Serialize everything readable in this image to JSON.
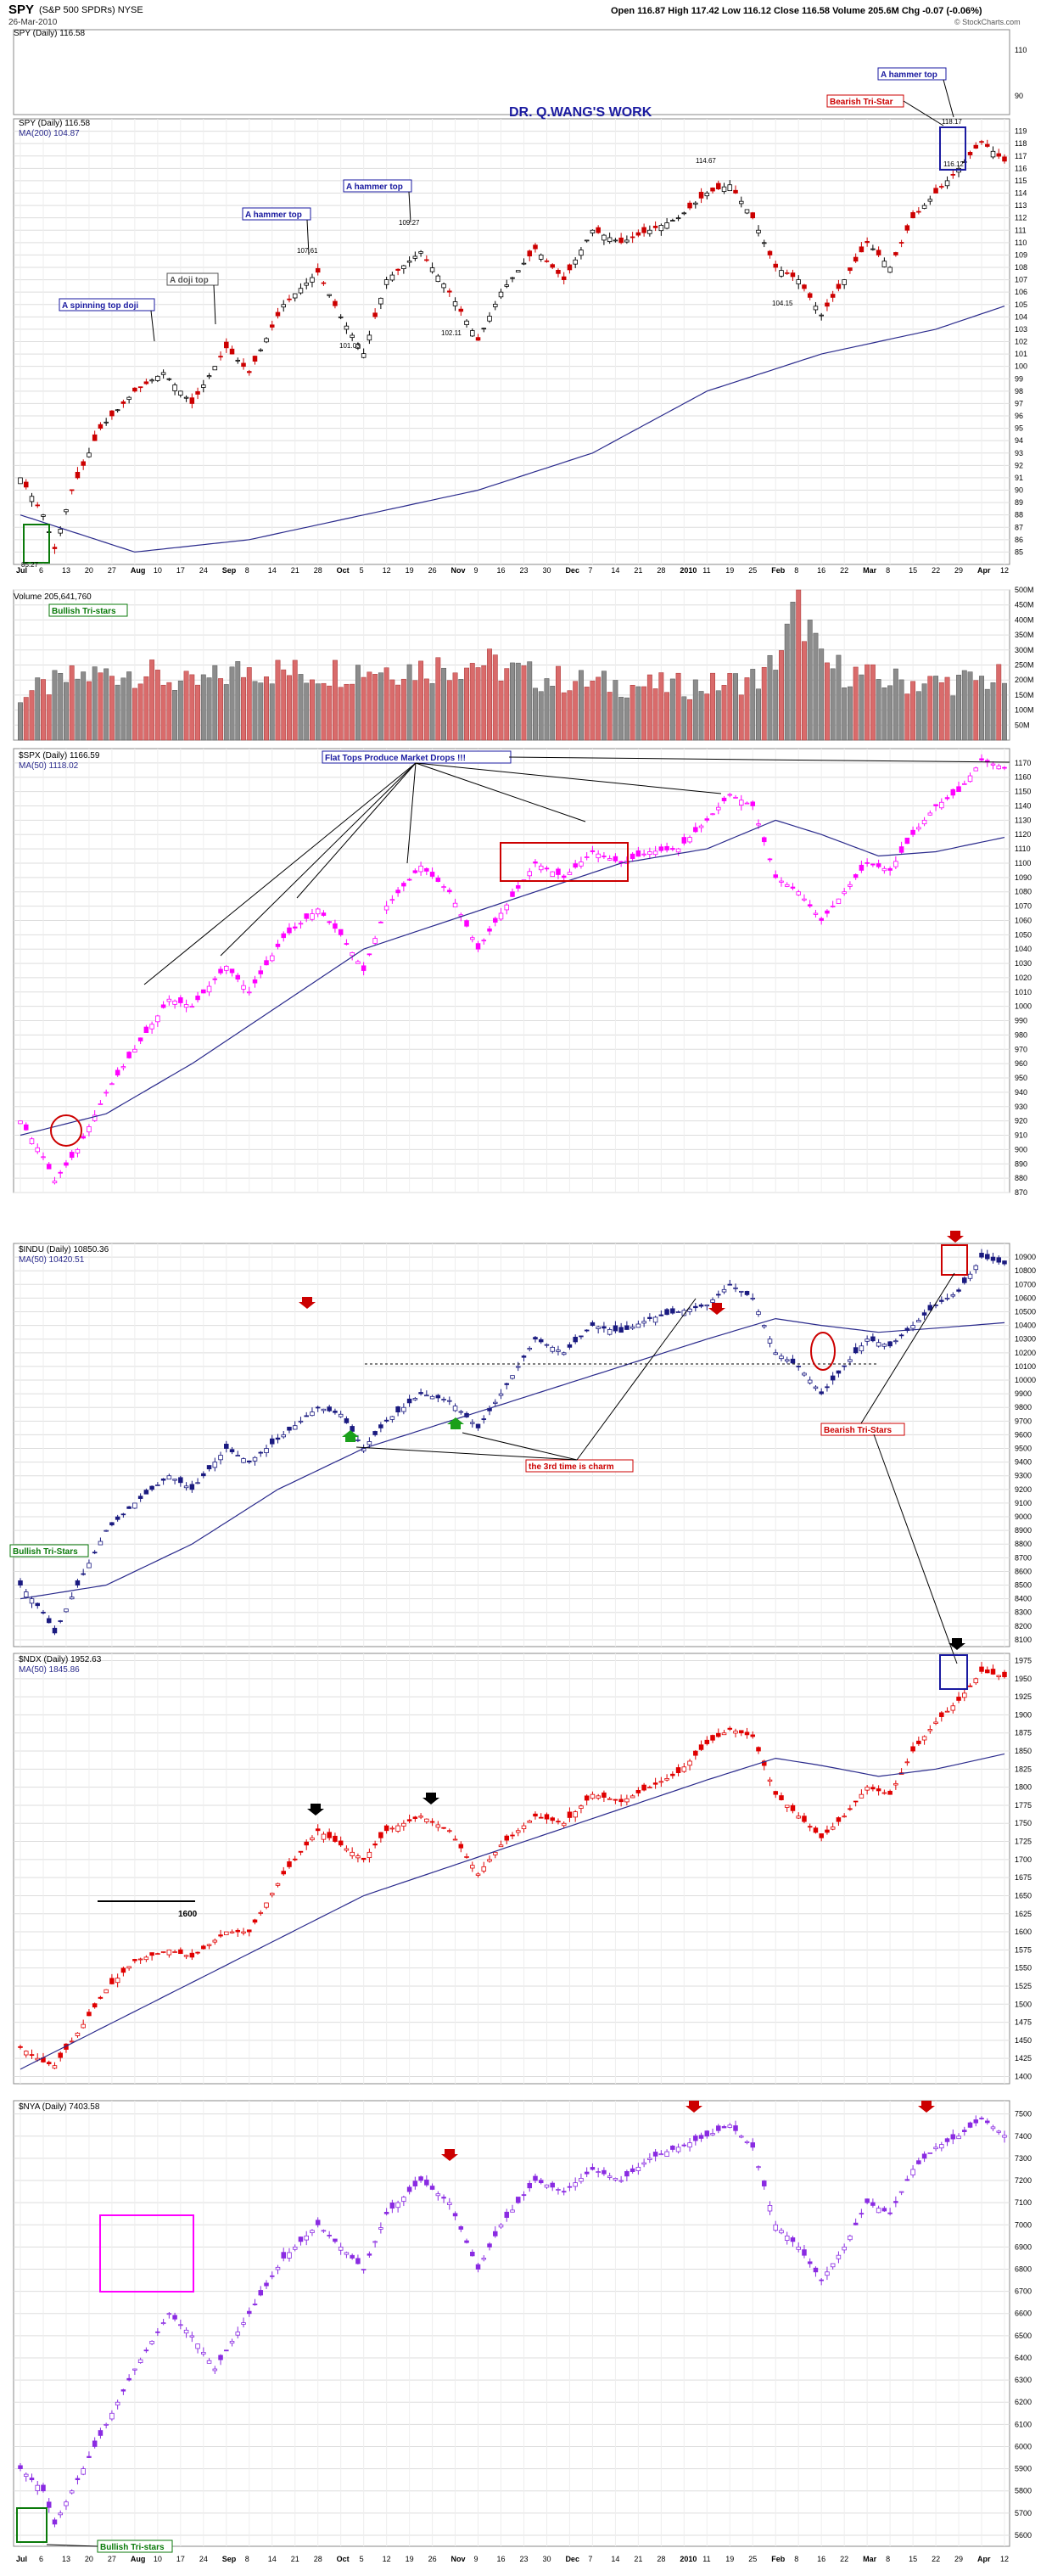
{
  "header": {
    "symbol": "SPY",
    "exchange_desc": "(S&P 500 SPDRs) NYSE",
    "date": "26-Mar-2010",
    "stats": "Open 116.87  High 117.42  Low 116.12  Close 116.58  Volume 205.6M  Chg -0.07 (-0.06%)",
    "credit": "© StockCharts.com",
    "top_legend": "SPY (Daily) 116.58"
  },
  "watermark": "DR. Q.WANG'S WORK",
  "month_labels": [
    "Jul",
    "6",
    "13",
    "20",
    "27",
    "Aug",
    "10",
    "17",
    "24",
    "Sep",
    "8",
    "14",
    "21",
    "28",
    "Oct",
    "5",
    "12",
    "19",
    "26",
    "Nov",
    "9",
    "16",
    "23",
    "30",
    "Dec",
    "7",
    "14",
    "21",
    "28",
    "2010",
    "11",
    "19",
    "25",
    "Feb",
    "8",
    "16",
    "22",
    "Mar",
    "8",
    "15",
    "22",
    "29",
    "Apr",
    "12"
  ],
  "colors": {
    "up": "#000000",
    "down": "#cc0000",
    "ma": "#2a2a8c",
    "spx": "#ff00ff",
    "indu": "#1a1a80",
    "ndx": "#e00000",
    "nya": "#8a2be2",
    "grid": "#dddddd"
  },
  "panels": {
    "spy": {
      "legend": "SPY (Daily) 116.58",
      "ma_legend": "MA(200) 104.87",
      "yticks": [
        "119",
        "118",
        "117",
        "116",
        "115",
        "114",
        "113",
        "112",
        "111",
        "110",
        "109",
        "108",
        "107",
        "106",
        "105",
        "104",
        "103",
        "102",
        "101",
        "100",
        "99",
        "98",
        "97",
        "96",
        "95",
        "94",
        "93",
        "92",
        "91",
        "90",
        "89",
        "88",
        "87",
        "86",
        "85"
      ],
      "top_ticks": [
        "110",
        "90"
      ],
      "annotations": {
        "spinning": "A spinning top doji",
        "doji": "A doji top",
        "hammer1": "A hammer top",
        "hammer2": "A hammer top",
        "hammer3": "A hammer top",
        "bearish": "Bearish Tri-Star",
        "bullish": "Bullish Tri-stars"
      },
      "price_labels": [
        "85.27",
        "107.61",
        "109.27",
        "101.03",
        "102.11",
        "114.67",
        "104.15",
        "118.17",
        "116.12"
      ]
    },
    "volume": {
      "legend": "Volume 205,641,760",
      "yticks": [
        "500M",
        "450M",
        "400M",
        "350M",
        "300M",
        "250M",
        "200M",
        "150M",
        "100M",
        "50M"
      ]
    },
    "spx": {
      "legend": "$SPX (Daily) 1166.59",
      "ma_legend": "MA(50) 1118.02",
      "yticks": [
        "1170",
        "1160",
        "1150",
        "1140",
        "1130",
        "1120",
        "1110",
        "1100",
        "1090",
        "1080",
        "1070",
        "1060",
        "1050",
        "1040",
        "1030",
        "1020",
        "1010",
        "1000",
        "990",
        "980",
        "970",
        "960",
        "950",
        "940",
        "930",
        "920",
        "910",
        "900",
        "890",
        "880",
        "870"
      ],
      "annotation": "Flat Tops Produce Market Drops !!!"
    },
    "indu": {
      "legend": "$INDU (Daily) 10850.36",
      "ma_legend": "MA(50) 10420.51",
      "yticks": [
        "10900",
        "10800",
        "10700",
        "10600",
        "10500",
        "10400",
        "10300",
        "10200",
        "10100",
        "10000",
        "9900",
        "9800",
        "9700",
        "9600",
        "9500",
        "9400",
        "9300",
        "9200",
        "9100",
        "9000",
        "8900",
        "8800",
        "8700",
        "8600",
        "8500",
        "8400",
        "8300",
        "8200",
        "8100"
      ],
      "bullish": "Bullish Tri-Stars",
      "third": "the 3rd time is charm",
      "bearish": "Bearish Tri-Stars"
    },
    "ndx": {
      "legend": "$NDX (Daily) 1952.63",
      "ma_legend": "MA(50) 1845.86",
      "yticks": [
        "1975",
        "1950",
        "1925",
        "1900",
        "1875",
        "1850",
        "1825",
        "1800",
        "1775",
        "1750",
        "1725",
        "1700",
        "1675",
        "1650",
        "1625",
        "1600",
        "1575",
        "1550",
        "1525",
        "1500",
        "1475",
        "1450",
        "1425",
        "1400"
      ],
      "level": "1600"
    },
    "nya": {
      "legend": "$NYA (Daily) 7403.58",
      "yticks": [
        "7500",
        "7400",
        "7300",
        "7200",
        "7100",
        "7000",
        "6900",
        "6800",
        "6700",
        "6600",
        "6500",
        "6400",
        "6300",
        "6200",
        "6100",
        "6000",
        "5900",
        "5800",
        "5700",
        "5600"
      ],
      "bullish": "Bullish Tri-stars"
    }
  },
  "chart_data": [
    {
      "type": "candlestick",
      "title": "SPY (Daily) 116.58",
      "ylim": [
        84,
        120
      ],
      "anchors": [
        [
          0,
          91
        ],
        [
          4,
          88
        ],
        [
          6,
          85.27
        ],
        [
          9,
          90
        ],
        [
          14,
          95
        ],
        [
          20,
          98
        ],
        [
          25,
          99.5
        ],
        [
          30,
          97
        ],
        [
          36,
          101.5
        ],
        [
          40,
          99.5
        ],
        [
          46,
          105
        ],
        [
          52,
          107.61
        ],
        [
          56,
          104
        ],
        [
          60,
          101.03
        ],
        [
          64,
          107
        ],
        [
          70,
          109.27
        ],
        [
          75,
          106
        ],
        [
          80,
          102.11
        ],
        [
          84,
          106
        ],
        [
          90,
          109.5
        ],
        [
          95,
          107
        ],
        [
          100,
          111
        ],
        [
          105,
          110
        ],
        [
          110,
          111
        ],
        [
          115,
          112
        ],
        [
          120,
          114
        ],
        [
          124,
          114.67
        ],
        [
          128,
          112
        ],
        [
          132,
          108
        ],
        [
          136,
          107
        ],
        [
          140,
          104.15
        ],
        [
          144,
          107
        ],
        [
          148,
          110
        ],
        [
          152,
          108
        ],
        [
          156,
          112
        ],
        [
          160,
          114
        ],
        [
          164,
          116
        ],
        [
          168,
          118.17
        ],
        [
          172,
          116.58
        ]
      ],
      "ma": [
        [
          0,
          88
        ],
        [
          20,
          85
        ],
        [
          40,
          86
        ],
        [
          60,
          88
        ],
        [
          80,
          90
        ],
        [
          100,
          93
        ],
        [
          120,
          98
        ],
        [
          140,
          101
        ],
        [
          160,
          103
        ],
        [
          172,
          104.87
        ]
      ]
    },
    {
      "type": "bar",
      "title": "Volume 205,641,760",
      "ylim": [
        0,
        500
      ],
      "anchors": [
        [
          0,
          150
        ],
        [
          10,
          210
        ],
        [
          20,
          230
        ],
        [
          30,
          180
        ],
        [
          40,
          240
        ],
        [
          50,
          220
        ],
        [
          60,
          240
        ],
        [
          70,
          240
        ],
        [
          80,
          260
        ],
        [
          90,
          210
        ],
        [
          100,
          190
        ],
        [
          110,
          180
        ],
        [
          120,
          180
        ],
        [
          130,
          210
        ],
        [
          134,
          340
        ],
        [
          136,
          470
        ],
        [
          140,
          250
        ],
        [
          150,
          200
        ],
        [
          160,
          190
        ],
        [
          172,
          205
        ]
      ]
    },
    {
      "type": "candlestick",
      "title": "$SPX (Daily) 1166.59",
      "ylim": [
        870,
        1180
      ],
      "anchors": [
        [
          0,
          920
        ],
        [
          4,
          895
        ],
        [
          6,
          878
        ],
        [
          10,
          900
        ],
        [
          15,
          940
        ],
        [
          20,
          970
        ],
        [
          26,
          1005
        ],
        [
          30,
          1000
        ],
        [
          36,
          1028
        ],
        [
          40,
          1010
        ],
        [
          46,
          1048
        ],
        [
          52,
          1068
        ],
        [
          56,
          1050
        ],
        [
          60,
          1025
        ],
        [
          64,
          1070
        ],
        [
          70,
          1098
        ],
        [
          75,
          1080
        ],
        [
          80,
          1040
        ],
        [
          84,
          1065
        ],
        [
          90,
          1100
        ],
        [
          95,
          1090
        ],
        [
          100,
          1108
        ],
        [
          105,
          1100
        ],
        [
          110,
          1108
        ],
        [
          115,
          1110
        ],
        [
          120,
          1130
        ],
        [
          124,
          1148
        ],
        [
          128,
          1140
        ],
        [
          132,
          1090
        ],
        [
          136,
          1080
        ],
        [
          140,
          1060
        ],
        [
          144,
          1080
        ],
        [
          148,
          1100
        ],
        [
          152,
          1095
        ],
        [
          156,
          1120
        ],
        [
          160,
          1140
        ],
        [
          164,
          1150
        ],
        [
          168,
          1172
        ],
        [
          172,
          1166.59
        ]
      ],
      "ma": [
        [
          0,
          910
        ],
        [
          15,
          925
        ],
        [
          30,
          960
        ],
        [
          45,
          1000
        ],
        [
          60,
          1040
        ],
        [
          75,
          1060
        ],
        [
          90,
          1080
        ],
        [
          105,
          1100
        ],
        [
          120,
          1110
        ],
        [
          132,
          1130
        ],
        [
          140,
          1120
        ],
        [
          150,
          1105
        ],
        [
          160,
          1108
        ],
        [
          172,
          1118
        ]
      ]
    },
    {
      "type": "candlestick",
      "title": "$INDU (Daily) 10850.36",
      "ylim": [
        8050,
        11000
      ],
      "anchors": [
        [
          0,
          8500
        ],
        [
          4,
          8300
        ],
        [
          6,
          8150
        ],
        [
          10,
          8500
        ],
        [
          15,
          8900
        ],
        [
          20,
          9100
        ],
        [
          26,
          9300
        ],
        [
          30,
          9200
        ],
        [
          36,
          9500
        ],
        [
          40,
          9400
        ],
        [
          46,
          9600
        ],
        [
          52,
          9800
        ],
        [
          56,
          9750
        ],
        [
          60,
          9500
        ],
        [
          64,
          9700
        ],
        [
          70,
          9900
        ],
        [
          75,
          9850
        ],
        [
          80,
          9650
        ],
        [
          84,
          9900
        ],
        [
          90,
          10300
        ],
        [
          95,
          10200
        ],
        [
          100,
          10400
        ],
        [
          105,
          10350
        ],
        [
          110,
          10450
        ],
        [
          115,
          10500
        ],
        [
          120,
          10550
        ],
        [
          124,
          10700
        ],
        [
          128,
          10600
        ],
        [
          132,
          10200
        ],
        [
          136,
          10100
        ],
        [
          140,
          9900
        ],
        [
          144,
          10100
        ],
        [
          148,
          10300
        ],
        [
          152,
          10250
        ],
        [
          156,
          10400
        ],
        [
          160,
          10550
        ],
        [
          164,
          10650
        ],
        [
          168,
          10900
        ],
        [
          172,
          10850.36
        ]
      ],
      "ma": [
        [
          0,
          8400
        ],
        [
          15,
          8500
        ],
        [
          30,
          8800
        ],
        [
          45,
          9200
        ],
        [
          60,
          9500
        ],
        [
          75,
          9700
        ],
        [
          90,
          9900
        ],
        [
          105,
          10100
        ],
        [
          120,
          10300
        ],
        [
          132,
          10450
        ],
        [
          140,
          10400
        ],
        [
          150,
          10350
        ],
        [
          160,
          10380
        ],
        [
          172,
          10420
        ]
      ]
    },
    {
      "type": "candlestick",
      "title": "$NDX (Daily) 1952.63",
      "ylim": [
        1390,
        1985
      ],
      "anchors": [
        [
          0,
          1440
        ],
        [
          4,
          1420
        ],
        [
          6,
          1415
        ],
        [
          10,
          1460
        ],
        [
          15,
          1520
        ],
        [
          20,
          1560
        ],
        [
          26,
          1575
        ],
        [
          30,
          1565
        ],
        [
          36,
          1600
        ],
        [
          40,
          1600
        ],
        [
          46,
          1680
        ],
        [
          52,
          1740
        ],
        [
          56,
          1720
        ],
        [
          60,
          1700
        ],
        [
          64,
          1740
        ],
        [
          70,
          1760
        ],
        [
          75,
          1740
        ],
        [
          80,
          1680
        ],
        [
          84,
          1720
        ],
        [
          90,
          1760
        ],
        [
          95,
          1750
        ],
        [
          100,
          1790
        ],
        [
          105,
          1780
        ],
        [
          110,
          1800
        ],
        [
          115,
          1820
        ],
        [
          120,
          1860
        ],
        [
          124,
          1880
        ],
        [
          128,
          1870
        ],
        [
          132,
          1790
        ],
        [
          136,
          1760
        ],
        [
          140,
          1730
        ],
        [
          144,
          1760
        ],
        [
          148,
          1800
        ],
        [
          152,
          1790
        ],
        [
          156,
          1850
        ],
        [
          160,
          1890
        ],
        [
          164,
          1920
        ],
        [
          168,
          1960
        ],
        [
          172,
          1952.63
        ]
      ],
      "ma": [
        [
          0,
          1410
        ],
        [
          15,
          1470
        ],
        [
          30,
          1530
        ],
        [
          45,
          1590
        ],
        [
          60,
          1650
        ],
        [
          75,
          1690
        ],
        [
          90,
          1730
        ],
        [
          105,
          1770
        ],
        [
          120,
          1810
        ],
        [
          132,
          1840
        ],
        [
          140,
          1830
        ],
        [
          150,
          1815
        ],
        [
          160,
          1825
        ],
        [
          172,
          1846
        ]
      ]
    },
    {
      "type": "candlestick",
      "title": "$NYA (Daily) 7403.58",
      "ylim": [
        5550,
        7560
      ],
      "anchors": [
        [
          0,
          5900
        ],
        [
          4,
          5800
        ],
        [
          6,
          5650
        ],
        [
          10,
          5850
        ],
        [
          15,
          6100
        ],
        [
          20,
          6350
        ],
        [
          26,
          6600
        ],
        [
          30,
          6500
        ],
        [
          34,
          6350
        ],
        [
          40,
          6600
        ],
        [
          46,
          6850
        ],
        [
          52,
          7000
        ],
        [
          56,
          6900
        ],
        [
          60,
          6800
        ],
        [
          64,
          7050
        ],
        [
          70,
          7200
        ],
        [
          75,
          7100
        ],
        [
          80,
          6800
        ],
        [
          84,
          7000
        ],
        [
          90,
          7200
        ],
        [
          95,
          7150
        ],
        [
          100,
          7250
        ],
        [
          105,
          7200
        ],
        [
          110,
          7300
        ],
        [
          115,
          7350
        ],
        [
          120,
          7400
        ],
        [
          124,
          7450
        ],
        [
          128,
          7350
        ],
        [
          132,
          7000
        ],
        [
          136,
          6900
        ],
        [
          140,
          6750
        ],
        [
          144,
          6900
        ],
        [
          148,
          7100
        ],
        [
          152,
          7050
        ],
        [
          156,
          7250
        ],
        [
          160,
          7350
        ],
        [
          164,
          7400
        ],
        [
          168,
          7480
        ],
        [
          172,
          7403.58
        ]
      ]
    }
  ]
}
